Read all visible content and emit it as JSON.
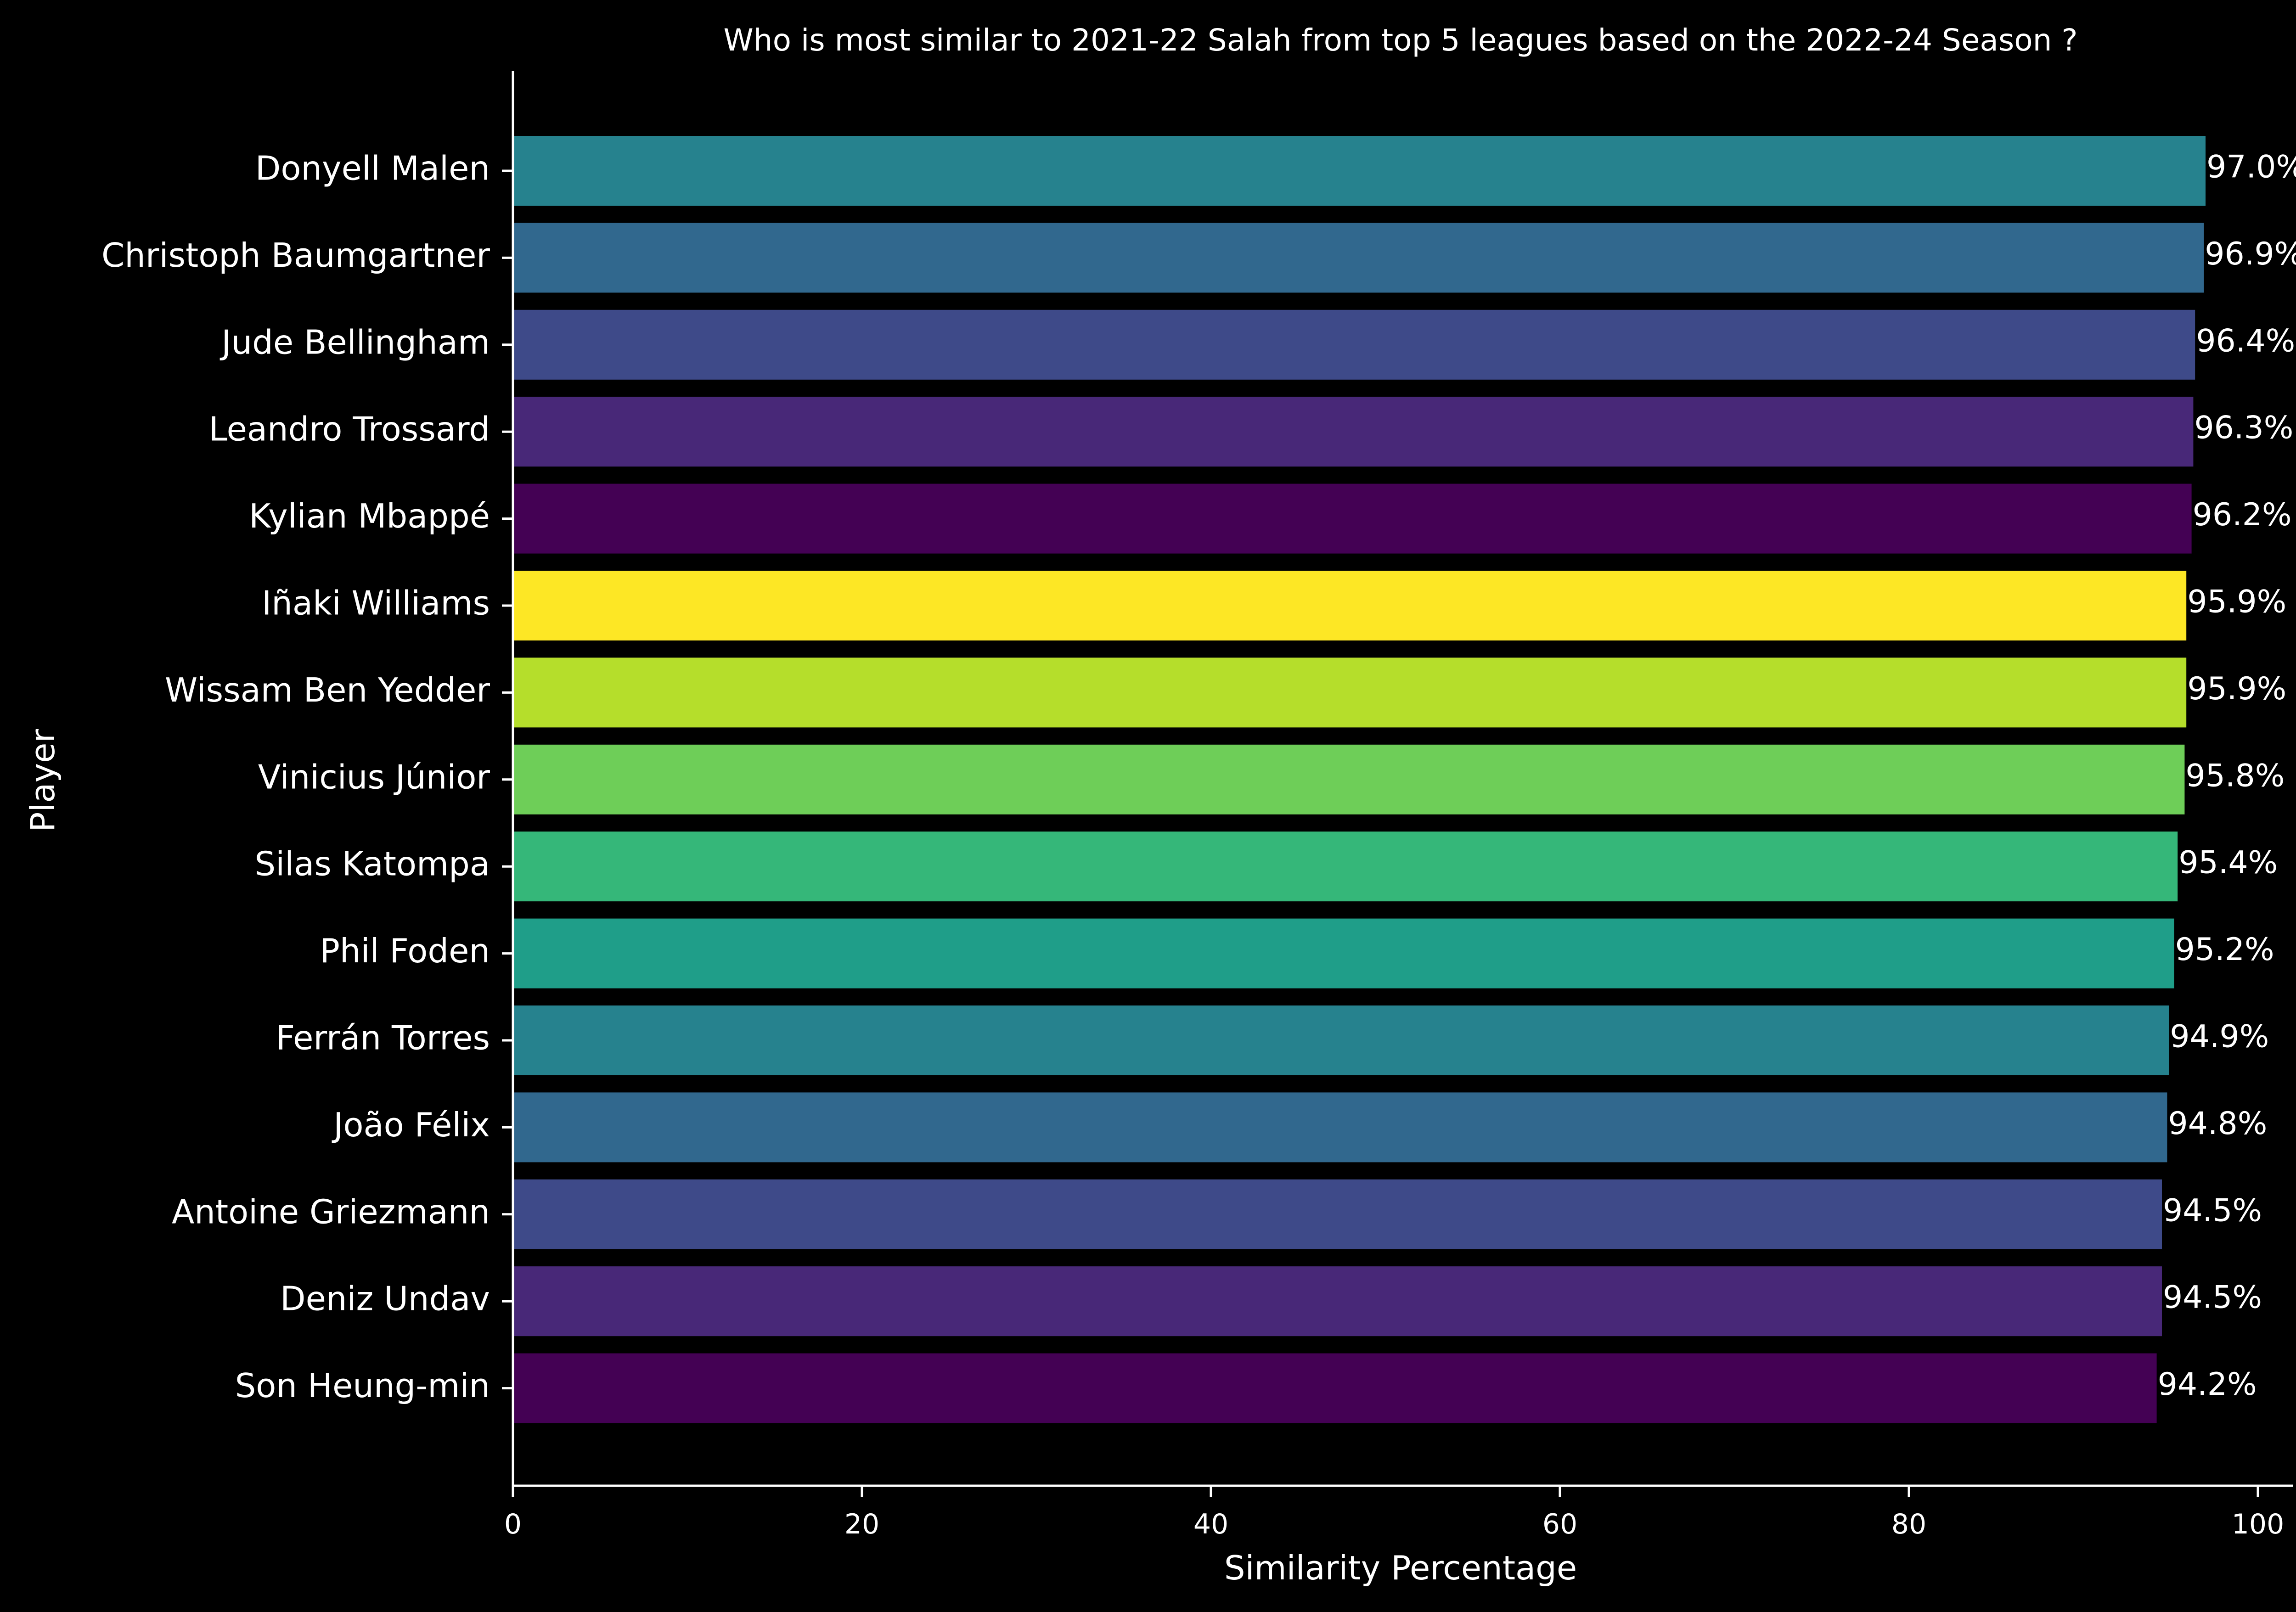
{
  "chart_data": {
    "type": "bar",
    "orientation": "horizontal",
    "title": "Who is most similar to 2021-22 Salah from top 5 leagues based on the 2022-24 Season ?",
    "xlabel": "Similarity Percentage",
    "ylabel": "Player",
    "xlim": [
      0,
      102
    ],
    "xticks": [
      0,
      20,
      40,
      60,
      80,
      100
    ],
    "grid": false,
    "legend": "none",
    "background": "#000000",
    "text_color": "#ffffff",
    "value_suffix": "%",
    "categories": [
      "Donyell Malen",
      "Christoph Baumgartner",
      "Jude Bellingham",
      "Leandro Trossard",
      "Kylian Mbappé",
      "Iñaki Williams",
      "Wissam Ben Yedder",
      "Vinicius Júnior",
      "Silas Katompa",
      "Phil Foden",
      "Ferrán Torres",
      "João Félix",
      "Antoine Griezmann",
      "Deniz Undav",
      "Son Heung-min"
    ],
    "values": [
      97.0,
      96.9,
      96.4,
      96.3,
      96.2,
      95.9,
      95.9,
      95.8,
      95.4,
      95.2,
      94.9,
      94.8,
      94.5,
      94.5,
      94.2
    ],
    "data_labels": [
      "97.0%",
      "96.9%",
      "96.4%",
      "96.3%",
      "96.2%",
      "95.9%",
      "95.9%",
      "95.8%",
      "95.4%",
      "95.2%",
      "94.9%",
      "94.8%",
      "94.5%",
      "94.5%",
      "94.2%"
    ],
    "colors": [
      "#26828e",
      "#31688e",
      "#3e4a89",
      "#482878",
      "#440154",
      "#fde725",
      "#b5de2b",
      "#6ece58",
      "#35b779",
      "#1f9e89",
      "#26828e",
      "#31688e",
      "#3e4a89",
      "#482878",
      "#440154"
    ]
  }
}
